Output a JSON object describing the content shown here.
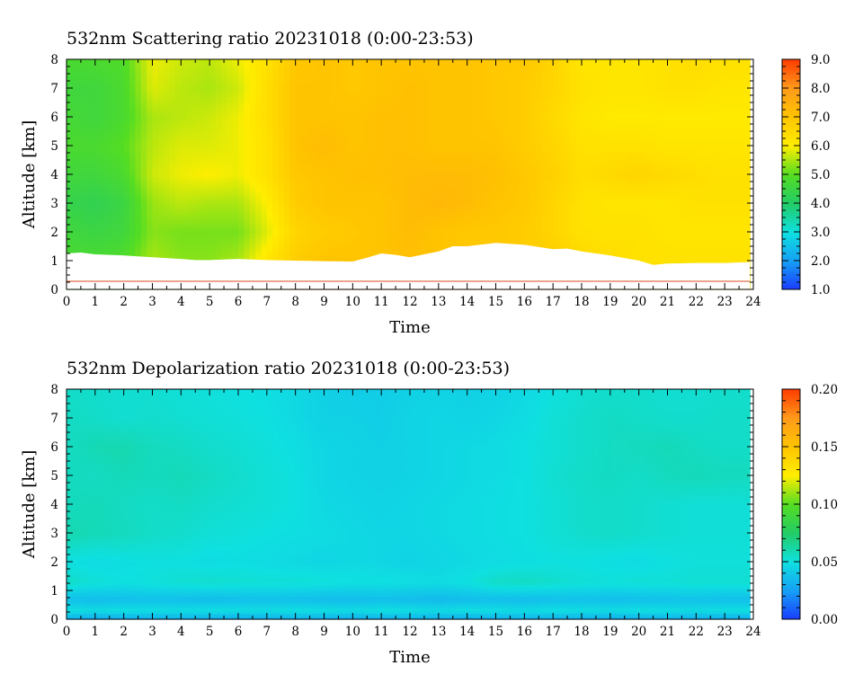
{
  "chart_data": [
    {
      "type": "heatmap",
      "title": "532nm Scattering ratio  20231018 (0:00-23:53)",
      "xlabel": "Time",
      "ylabel": "Altitude [km]",
      "xlim": [
        0,
        24
      ],
      "ylim": [
        0,
        8
      ],
      "x_ticks": [
        "0",
        "1",
        "2",
        "3",
        "4",
        "5",
        "6",
        "7",
        "8",
        "9",
        "10",
        "11",
        "12",
        "13",
        "14",
        "15",
        "16",
        "17",
        "18",
        "19",
        "20",
        "21",
        "22",
        "23",
        "24"
      ],
      "y_ticks": [
        "0",
        "1",
        "2",
        "3",
        "4",
        "5",
        "6",
        "7",
        "8"
      ],
      "colorbar": {
        "min": 1.0,
        "max": 9.0,
        "ticks": [
          "1.0",
          "2.0",
          "3.0",
          "4.0",
          "5.0",
          "6.0",
          "7.0",
          "8.0",
          "9.0"
        ],
        "colors": [
          "#1a3cff",
          "#16a0f5",
          "#0fe0e0",
          "#22cc66",
          "#55dd22",
          "#ffee00",
          "#ffc400",
          "#ff9a1a",
          "#ff3c00"
        ]
      },
      "data_end_hour": 23.88,
      "hours": [
        0,
        1,
        2,
        3,
        4,
        5,
        6,
        7,
        8,
        9,
        10,
        11,
        12,
        13,
        14,
        15,
        16,
        17,
        18,
        19,
        20,
        21,
        22,
        23,
        24
      ],
      "levels_km": [
        1,
        2,
        3,
        4,
        5,
        6,
        7,
        8
      ],
      "values": [
        [
          4.8,
          4.8,
          4.9,
          5.5,
          5.3,
          5.3,
          5.5,
          6.2,
          6.8,
          7.0,
          7.0,
          7.0,
          7.1,
          7.0,
          6.9,
          6.9,
          6.8,
          6.8,
          6.5,
          6.4,
          6.3,
          6.3,
          6.3,
          6.3,
          6.3
        ],
        [
          4.6,
          4.5,
          4.6,
          5.3,
          5.2,
          5.2,
          5.2,
          5.8,
          6.6,
          6.8,
          6.9,
          7.0,
          7.2,
          7.0,
          6.9,
          6.9,
          6.8,
          6.6,
          6.3,
          6.3,
          6.3,
          6.2,
          6.2,
          6.2,
          6.2
        ],
        [
          4.4,
          4.3,
          4.5,
          5.4,
          5.6,
          5.5,
          5.5,
          6.0,
          6.8,
          7.0,
          7.0,
          7.0,
          7.2,
          7.3,
          7.2,
          7.0,
          6.9,
          6.6,
          6.3,
          6.2,
          6.2,
          6.2,
          6.3,
          6.3,
          6.3
        ],
        [
          4.6,
          4.6,
          4.8,
          5.7,
          5.9,
          6.0,
          5.9,
          6.3,
          6.9,
          7.0,
          7.1,
          7.1,
          7.2,
          7.2,
          7.2,
          7.1,
          6.9,
          6.7,
          6.4,
          6.5,
          6.6,
          6.5,
          6.4,
          6.3,
          6.3
        ],
        [
          4.8,
          4.8,
          5.0,
          5.6,
          5.8,
          5.8,
          5.9,
          6.3,
          7.0,
          7.2,
          7.0,
          7.1,
          7.1,
          7.0,
          7.0,
          7.0,
          6.8,
          6.6,
          6.3,
          6.3,
          6.3,
          6.2,
          6.2,
          6.2,
          6.2
        ],
        [
          4.7,
          4.6,
          4.8,
          5.5,
          5.6,
          5.7,
          5.9,
          6.4,
          7.0,
          7.0,
          7.0,
          7.1,
          7.1,
          7.0,
          7.0,
          6.9,
          6.8,
          6.5,
          6.2,
          6.1,
          6.1,
          6.1,
          6.1,
          6.1,
          6.1
        ],
        [
          4.6,
          4.6,
          4.8,
          5.8,
          5.6,
          5.5,
          5.7,
          6.4,
          7.0,
          7.0,
          6.9,
          7.0,
          7.1,
          7.0,
          7.0,
          6.9,
          6.8,
          6.6,
          6.3,
          6.2,
          6.2,
          6.3,
          6.3,
          6.2,
          6.2
        ],
        [
          4.8,
          4.8,
          4.9,
          5.9,
          5.7,
          5.6,
          5.9,
          6.3,
          6.9,
          7.0,
          6.9,
          7.0,
          7.0,
          7.0,
          7.0,
          6.9,
          6.9,
          6.6,
          6.2,
          6.2,
          6.2,
          6.3,
          6.4,
          6.3,
          6.3
        ]
      ],
      "cloud_base_hours": [
        0,
        0.5,
        1,
        2,
        3,
        4,
        4.5,
        5,
        6,
        7,
        8,
        9,
        10,
        10.5,
        11,
        11.5,
        12,
        13,
        13.5,
        14,
        15,
        16,
        17,
        17.5,
        18,
        19,
        20,
        20.5,
        21,
        22,
        23,
        23.88
      ],
      "cloud_base_km": [
        1.25,
        1.28,
        1.22,
        1.18,
        1.12,
        1.06,
        1.02,
        1.02,
        1.06,
        1.02,
        1.0,
        0.98,
        0.97,
        1.1,
        1.25,
        1.2,
        1.12,
        1.32,
        1.5,
        1.5,
        1.62,
        1.55,
        1.4,
        1.42,
        1.32,
        1.18,
        1.0,
        0.85,
        0.9,
        0.92,
        0.92,
        0.95
      ],
      "ground_line_km": 0.28
    },
    {
      "type": "heatmap",
      "title": "532nm Depolarization ratio  20231018 (0:00-23:53)",
      "xlabel": "Time",
      "ylabel": "Altitude [km]",
      "xlim": [
        0,
        24
      ],
      "ylim": [
        0,
        8
      ],
      "x_ticks": [
        "0",
        "1",
        "2",
        "3",
        "4",
        "5",
        "6",
        "7",
        "8",
        "9",
        "10",
        "11",
        "12",
        "13",
        "14",
        "15",
        "16",
        "17",
        "18",
        "19",
        "20",
        "21",
        "22",
        "23",
        "24"
      ],
      "y_ticks": [
        "0",
        "1",
        "2",
        "3",
        "4",
        "5",
        "6",
        "7",
        "8"
      ],
      "colorbar": {
        "min": 0.0,
        "max": 0.2,
        "ticks": [
          "0.00",
          "0.05",
          "0.10",
          "0.15",
          "0.20"
        ],
        "colors": [
          "#1a3cff",
          "#16a0f5",
          "#0fe0e0",
          "#22cc66",
          "#55dd22",
          "#ffee00",
          "#ffc400",
          "#ff9a1a",
          "#ff3c00"
        ]
      },
      "data_end_hour": 23.88,
      "hours": [
        0,
        1,
        2,
        3,
        4,
        5,
        6,
        7,
        8,
        9,
        10,
        11,
        12,
        13,
        14,
        15,
        16,
        17,
        18,
        19,
        20,
        21,
        22,
        23,
        24
      ],
      "levels_km": [
        0.1,
        0.3,
        0.7,
        1.3,
        2,
        3,
        4,
        5,
        6,
        7,
        8
      ],
      "values": [
        [
          0.035,
          0.033,
          0.034,
          0.035,
          0.036,
          0.035,
          0.034,
          0.035,
          0.036,
          0.035,
          0.034,
          0.035,
          0.036,
          0.035,
          0.034,
          0.035,
          0.036,
          0.035,
          0.035,
          0.034,
          0.035,
          0.036,
          0.035,
          0.034,
          0.034
        ],
        [
          0.05,
          0.048,
          0.05,
          0.049,
          0.048,
          0.05,
          0.049,
          0.048,
          0.05,
          0.049,
          0.048,
          0.05,
          0.049,
          0.048,
          0.05,
          0.049,
          0.048,
          0.05,
          0.049,
          0.048,
          0.05,
          0.049,
          0.048,
          0.05,
          0.05
        ],
        [
          0.038,
          0.036,
          0.037,
          0.038,
          0.037,
          0.036,
          0.037,
          0.038,
          0.037,
          0.036,
          0.036,
          0.037,
          0.036,
          0.035,
          0.036,
          0.037,
          0.036,
          0.037,
          0.038,
          0.037,
          0.037,
          0.038,
          0.038,
          0.037,
          0.037
        ],
        [
          0.055,
          0.052,
          0.05,
          0.051,
          0.053,
          0.054,
          0.053,
          0.052,
          0.052,
          0.051,
          0.05,
          0.05,
          0.049,
          0.048,
          0.05,
          0.055,
          0.056,
          0.054,
          0.052,
          0.051,
          0.052,
          0.052,
          0.053,
          0.053,
          0.053
        ],
        [
          0.05,
          0.048,
          0.049,
          0.05,
          0.05,
          0.048,
          0.049,
          0.048,
          0.047,
          0.046,
          0.047,
          0.046,
          0.045,
          0.046,
          0.047,
          0.048,
          0.049,
          0.05,
          0.05,
          0.049,
          0.048,
          0.05,
          0.051,
          0.051,
          0.051
        ],
        [
          0.06,
          0.058,
          0.057,
          0.055,
          0.054,
          0.052,
          0.051,
          0.05,
          0.049,
          0.048,
          0.047,
          0.046,
          0.046,
          0.047,
          0.048,
          0.049,
          0.05,
          0.052,
          0.054,
          0.055,
          0.054,
          0.053,
          0.052,
          0.052,
          0.052
        ],
        [
          0.057,
          0.058,
          0.056,
          0.055,
          0.056,
          0.054,
          0.053,
          0.052,
          0.05,
          0.047,
          0.046,
          0.045,
          0.046,
          0.047,
          0.048,
          0.049,
          0.05,
          0.052,
          0.054,
          0.055,
          0.054,
          0.053,
          0.052,
          0.052,
          0.052
        ],
        [
          0.057,
          0.056,
          0.058,
          0.057,
          0.058,
          0.056,
          0.054,
          0.052,
          0.05,
          0.046,
          0.045,
          0.044,
          0.045,
          0.046,
          0.047,
          0.048,
          0.05,
          0.053,
          0.055,
          0.056,
          0.055,
          0.057,
          0.058,
          0.057,
          0.057
        ],
        [
          0.056,
          0.059,
          0.06,
          0.057,
          0.056,
          0.054,
          0.053,
          0.051,
          0.049,
          0.046,
          0.045,
          0.044,
          0.045,
          0.046,
          0.047,
          0.048,
          0.05,
          0.052,
          0.054,
          0.056,
          0.057,
          0.058,
          0.056,
          0.055,
          0.055
        ],
        [
          0.056,
          0.055,
          0.053,
          0.054,
          0.053,
          0.052,
          0.051,
          0.05,
          0.047,
          0.044,
          0.044,
          0.043,
          0.045,
          0.046,
          0.045,
          0.046,
          0.048,
          0.052,
          0.054,
          0.056,
          0.055,
          0.054,
          0.054,
          0.055,
          0.055
        ],
        [
          0.055,
          0.054,
          0.053,
          0.053,
          0.052,
          0.051,
          0.05,
          0.049,
          0.047,
          0.044,
          0.043,
          0.043,
          0.044,
          0.045,
          0.044,
          0.045,
          0.047,
          0.05,
          0.053,
          0.054,
          0.054,
          0.053,
          0.053,
          0.054,
          0.054
        ]
      ]
    }
  ]
}
